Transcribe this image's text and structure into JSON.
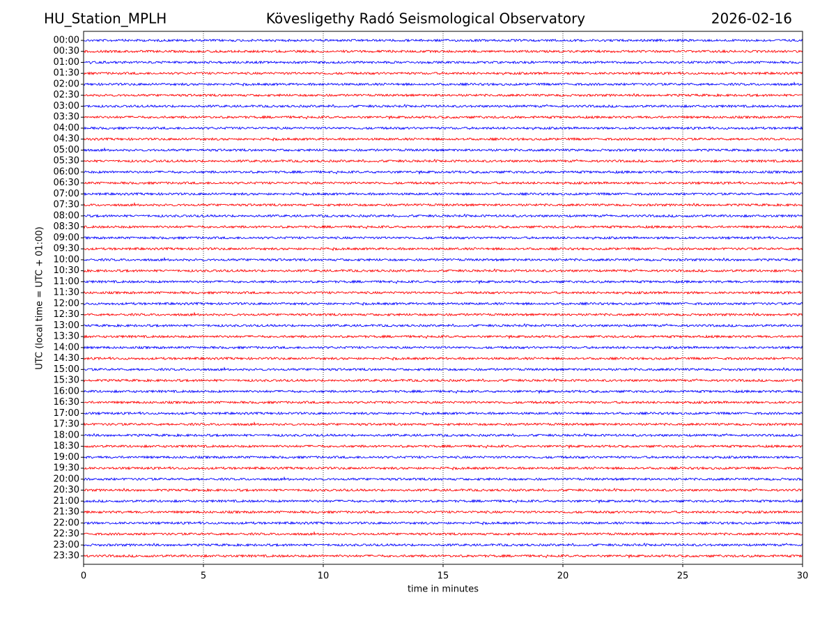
{
  "chart_data": {
    "type": "helicorder",
    "station": "HU_Station_MPLH",
    "title": "Kövesligethy Radó Seismological Observatory",
    "date": "2026-02-16",
    "ylabel": "UTC (local time = UTC + 01:00)",
    "xlabel": "time in minutes",
    "categories": [
      "00:00",
      "00:30",
      "01:00",
      "01:30",
      "02:00",
      "02:30",
      "03:00",
      "03:30",
      "04:00",
      "04:30",
      "05:00",
      "05:30",
      "06:00",
      "06:30",
      "07:00",
      "07:30",
      "08:00",
      "08:30",
      "09:00",
      "09:30",
      "10:00",
      "10:30",
      "11:00",
      "11:30",
      "12:00",
      "12:30",
      "13:00",
      "13:30",
      "14:00",
      "14:30",
      "15:00",
      "15:30",
      "16:00",
      "16:30",
      "17:00",
      "17:30",
      "18:00",
      "18:30",
      "19:00",
      "19:30",
      "20:00",
      "20:30",
      "21:00",
      "21:30",
      "22:00",
      "22:30",
      "23:00",
      "23:30"
    ],
    "colors": [
      "#0000ff",
      "#ff0000"
    ],
    "xlim": [
      0,
      30
    ],
    "xticks": [
      0,
      5,
      10,
      15,
      20,
      25,
      30
    ],
    "grid": true
  }
}
